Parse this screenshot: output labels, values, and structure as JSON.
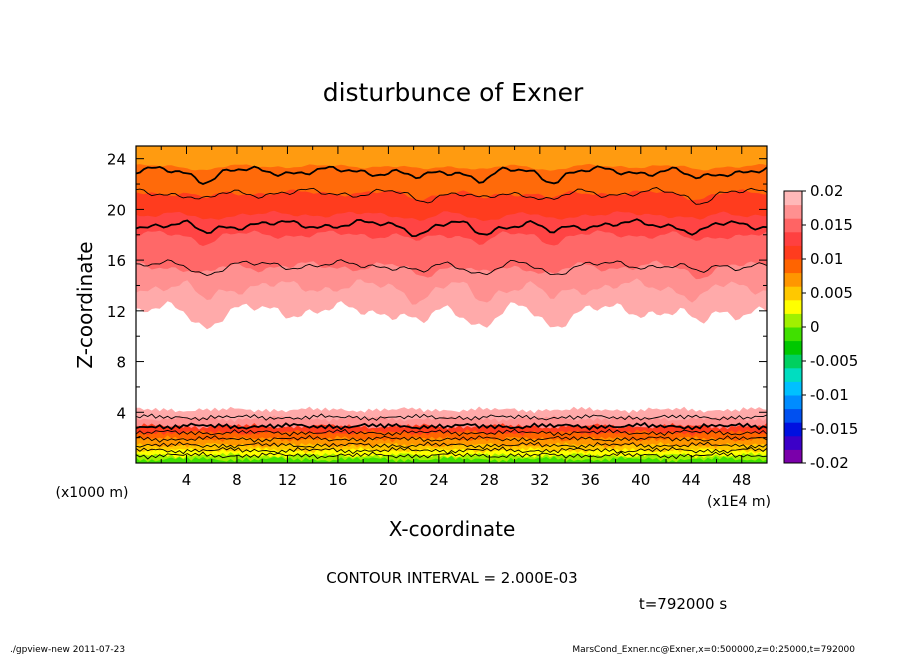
{
  "chart_data": {
    "type": "contour",
    "title": "disturbunce of Exner",
    "xlabel": "X-coordinate",
    "ylabel": "Z-coordinate",
    "x_unit": "(x1E4 m)",
    "y_unit": "(x1000 m)",
    "xlim": [
      0,
      50
    ],
    "ylim": [
      0,
      25
    ],
    "x_ticks": [
      4,
      8,
      12,
      16,
      20,
      24,
      28,
      32,
      36,
      40,
      44,
      48
    ],
    "y_ticks": [
      4,
      8,
      12,
      16,
      20,
      24
    ],
    "colorbar": {
      "range": [
        -0.02,
        0.02
      ],
      "tick_values": [
        0.02,
        0.015,
        0.01,
        0.005,
        0,
        -0.005,
        -0.01,
        -0.015,
        -0.02
      ],
      "tick_labels": [
        "0.02",
        "0.015",
        "0.01",
        "0.005",
        "0",
        "-0.005",
        "-0.01",
        "-0.015",
        "-0.02"
      ],
      "colors": [
        "#7a00aa",
        "#3c00c8",
        "#0010e0",
        "#0050f0",
        "#008cff",
        "#00c0ff",
        "#00ddc0",
        "#00d060",
        "#00c800",
        "#40e000",
        "#a0f000",
        "#ffff00",
        "#ffc800",
        "#ff9600",
        "#ff6400",
        "#ff3c1e",
        "#ff4040",
        "#ff6464",
        "#ff9090",
        "#ffb8b8"
      ]
    },
    "upper_bands": [
      {
        "z": 23.4,
        "wave": 0.2,
        "color": "#ff9b10"
      },
      {
        "z": 21.3,
        "wave": 0.3,
        "color": "#ff6a0a"
      },
      {
        "z": 19.6,
        "wave": 0.3,
        "color": "#ff3c1e"
      },
      {
        "z": 18.0,
        "wave": 0.4,
        "color": "#ff4444"
      },
      {
        "z": 15.5,
        "wave": 0.5,
        "color": "#ff6868"
      },
      {
        "z": 13.9,
        "wave": 0.7,
        "color": "#ff9090"
      },
      {
        "z": 12.0,
        "wave": 0.8,
        "color": "#ffaaaa"
      }
    ],
    "lower_bands": [
      {
        "z": 4.2,
        "color": "#ffaaaa"
      },
      {
        "z": 3.5,
        "color": "#ff9090"
      },
      {
        "z": 2.9,
        "color": "#ff3c1e"
      },
      {
        "z": 2.4,
        "color": "#ff6400"
      },
      {
        "z": 1.9,
        "color": "#ff9600"
      },
      {
        "z": 1.4,
        "color": "#ffc800"
      },
      {
        "z": 1.0,
        "color": "#ffff00"
      },
      {
        "z": 0.6,
        "color": "#a0f000"
      },
      {
        "z": 0.3,
        "color": "#40e000"
      }
    ],
    "contour_lines": [
      {
        "z": 23.0,
        "thick": true
      },
      {
        "z": 21.3,
        "thick": false
      },
      {
        "z": 18.8,
        "thick": true
      },
      {
        "z": 15.6,
        "thick": false
      },
      {
        "z": 3.6,
        "thick": false
      },
      {
        "z": 2.9,
        "thick": true
      },
      {
        "z": 2.4,
        "thick": false
      },
      {
        "z": 1.9,
        "thick": false
      },
      {
        "z": 1.4,
        "thick": false
      },
      {
        "z": 1.0,
        "thick": false
      },
      {
        "z": 0.6,
        "thick": false
      }
    ]
  },
  "annotations": {
    "contour_interval": "CONTOUR INTERVAL = 2.000E-03",
    "time": "t=792000 s"
  },
  "footer": {
    "left": "./gpview-new   2011-07-23",
    "right": "MarsCond_Exner.nc@Exner,x=0:500000,z=0:25000,t=792000"
  }
}
